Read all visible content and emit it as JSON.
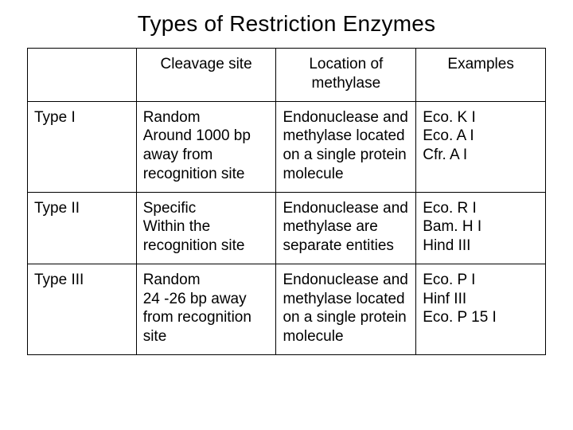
{
  "title": "Types of Restriction Enzymes",
  "table": {
    "headers": [
      "",
      "Cleavage site",
      "Location of methylase",
      "Examples"
    ],
    "rows": [
      {
        "type": "Type I",
        "cleavage": [
          "Random",
          "Around 1000 bp away from recognition site"
        ],
        "location": [
          "Endonuclease and methylase located on a single protein molecule"
        ],
        "examples": [
          "Eco. K I",
          "Eco. A I",
          "Cfr. A I"
        ]
      },
      {
        "type": "Type II",
        "cleavage": [
          "Specific",
          "Within the recognition site"
        ],
        "location": [
          "Endonuclease and methylase are separate entities"
        ],
        "examples": [
          "Eco. R I",
          "Bam. H I",
          "Hind III"
        ]
      },
      {
        "type": "Type III",
        "cleavage": [
          "Random",
          "24 -26 bp away from recognition site"
        ],
        "location": [
          "Endonuclease and methylase located on a single protein molecule"
        ],
        "examples": [
          "Eco. P I",
          "Hinf III",
          "Eco. P 15 I"
        ]
      }
    ]
  },
  "styles": {
    "background_color": "#ffffff",
    "text_color": "#000000",
    "border_color": "#000000",
    "title_fontsize": 28,
    "cell_fontsize": 19,
    "font_family": "Arial"
  }
}
